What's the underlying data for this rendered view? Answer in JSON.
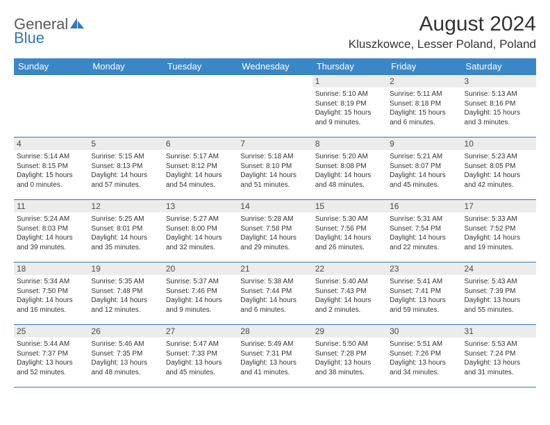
{
  "logo": {
    "word1": "General",
    "word2": "Blue"
  },
  "title": "August 2024",
  "location": "Kluszkowce, Lesser Poland, Poland",
  "colors": {
    "header_bg": "#3a87c7",
    "border": "#2f78b7",
    "daynum_bg": "#ececec",
    "text": "#333333",
    "logo_gray": "#5a5a5a",
    "logo_blue": "#2f78b7"
  },
  "dayHeaders": [
    "Sunday",
    "Monday",
    "Tuesday",
    "Wednesday",
    "Thursday",
    "Friday",
    "Saturday"
  ],
  "weeks": [
    [
      {
        "n": "",
        "sr": "",
        "ss": "",
        "dl": ""
      },
      {
        "n": "",
        "sr": "",
        "ss": "",
        "dl": ""
      },
      {
        "n": "",
        "sr": "",
        "ss": "",
        "dl": ""
      },
      {
        "n": "",
        "sr": "",
        "ss": "",
        "dl": ""
      },
      {
        "n": "1",
        "sr": "5:10 AM",
        "ss": "8:19 PM",
        "dl": "15 hours and 9 minutes."
      },
      {
        "n": "2",
        "sr": "5:11 AM",
        "ss": "8:18 PM",
        "dl": "15 hours and 6 minutes."
      },
      {
        "n": "3",
        "sr": "5:13 AM",
        "ss": "8:16 PM",
        "dl": "15 hours and 3 minutes."
      }
    ],
    [
      {
        "n": "4",
        "sr": "5:14 AM",
        "ss": "8:15 PM",
        "dl": "15 hours and 0 minutes."
      },
      {
        "n": "5",
        "sr": "5:15 AM",
        "ss": "8:13 PM",
        "dl": "14 hours and 57 minutes."
      },
      {
        "n": "6",
        "sr": "5:17 AM",
        "ss": "8:12 PM",
        "dl": "14 hours and 54 minutes."
      },
      {
        "n": "7",
        "sr": "5:18 AM",
        "ss": "8:10 PM",
        "dl": "14 hours and 51 minutes."
      },
      {
        "n": "8",
        "sr": "5:20 AM",
        "ss": "8:08 PM",
        "dl": "14 hours and 48 minutes."
      },
      {
        "n": "9",
        "sr": "5:21 AM",
        "ss": "8:07 PM",
        "dl": "14 hours and 45 minutes."
      },
      {
        "n": "10",
        "sr": "5:23 AM",
        "ss": "8:05 PM",
        "dl": "14 hours and 42 minutes."
      }
    ],
    [
      {
        "n": "11",
        "sr": "5:24 AM",
        "ss": "8:03 PM",
        "dl": "14 hours and 39 minutes."
      },
      {
        "n": "12",
        "sr": "5:25 AM",
        "ss": "8:01 PM",
        "dl": "14 hours and 35 minutes."
      },
      {
        "n": "13",
        "sr": "5:27 AM",
        "ss": "8:00 PM",
        "dl": "14 hours and 32 minutes."
      },
      {
        "n": "14",
        "sr": "5:28 AM",
        "ss": "7:58 PM",
        "dl": "14 hours and 29 minutes."
      },
      {
        "n": "15",
        "sr": "5:30 AM",
        "ss": "7:56 PM",
        "dl": "14 hours and 26 minutes."
      },
      {
        "n": "16",
        "sr": "5:31 AM",
        "ss": "7:54 PM",
        "dl": "14 hours and 22 minutes."
      },
      {
        "n": "17",
        "sr": "5:33 AM",
        "ss": "7:52 PM",
        "dl": "14 hours and 19 minutes."
      }
    ],
    [
      {
        "n": "18",
        "sr": "5:34 AM",
        "ss": "7:50 PM",
        "dl": "14 hours and 16 minutes."
      },
      {
        "n": "19",
        "sr": "5:35 AM",
        "ss": "7:48 PM",
        "dl": "14 hours and 12 minutes."
      },
      {
        "n": "20",
        "sr": "5:37 AM",
        "ss": "7:46 PM",
        "dl": "14 hours and 9 minutes."
      },
      {
        "n": "21",
        "sr": "5:38 AM",
        "ss": "7:44 PM",
        "dl": "14 hours and 6 minutes."
      },
      {
        "n": "22",
        "sr": "5:40 AM",
        "ss": "7:43 PM",
        "dl": "14 hours and 2 minutes."
      },
      {
        "n": "23",
        "sr": "5:41 AM",
        "ss": "7:41 PM",
        "dl": "13 hours and 59 minutes."
      },
      {
        "n": "24",
        "sr": "5:43 AM",
        "ss": "7:39 PM",
        "dl": "13 hours and 55 minutes."
      }
    ],
    [
      {
        "n": "25",
        "sr": "5:44 AM",
        "ss": "7:37 PM",
        "dl": "13 hours and 52 minutes."
      },
      {
        "n": "26",
        "sr": "5:46 AM",
        "ss": "7:35 PM",
        "dl": "13 hours and 48 minutes."
      },
      {
        "n": "27",
        "sr": "5:47 AM",
        "ss": "7:33 PM",
        "dl": "13 hours and 45 minutes."
      },
      {
        "n": "28",
        "sr": "5:49 AM",
        "ss": "7:31 PM",
        "dl": "13 hours and 41 minutes."
      },
      {
        "n": "29",
        "sr": "5:50 AM",
        "ss": "7:28 PM",
        "dl": "13 hours and 38 minutes."
      },
      {
        "n": "30",
        "sr": "5:51 AM",
        "ss": "7:26 PM",
        "dl": "13 hours and 34 minutes."
      },
      {
        "n": "31",
        "sr": "5:53 AM",
        "ss": "7:24 PM",
        "dl": "13 hours and 31 minutes."
      }
    ]
  ],
  "labels": {
    "sunrise": "Sunrise:",
    "sunset": "Sunset:",
    "daylight": "Daylight:"
  }
}
